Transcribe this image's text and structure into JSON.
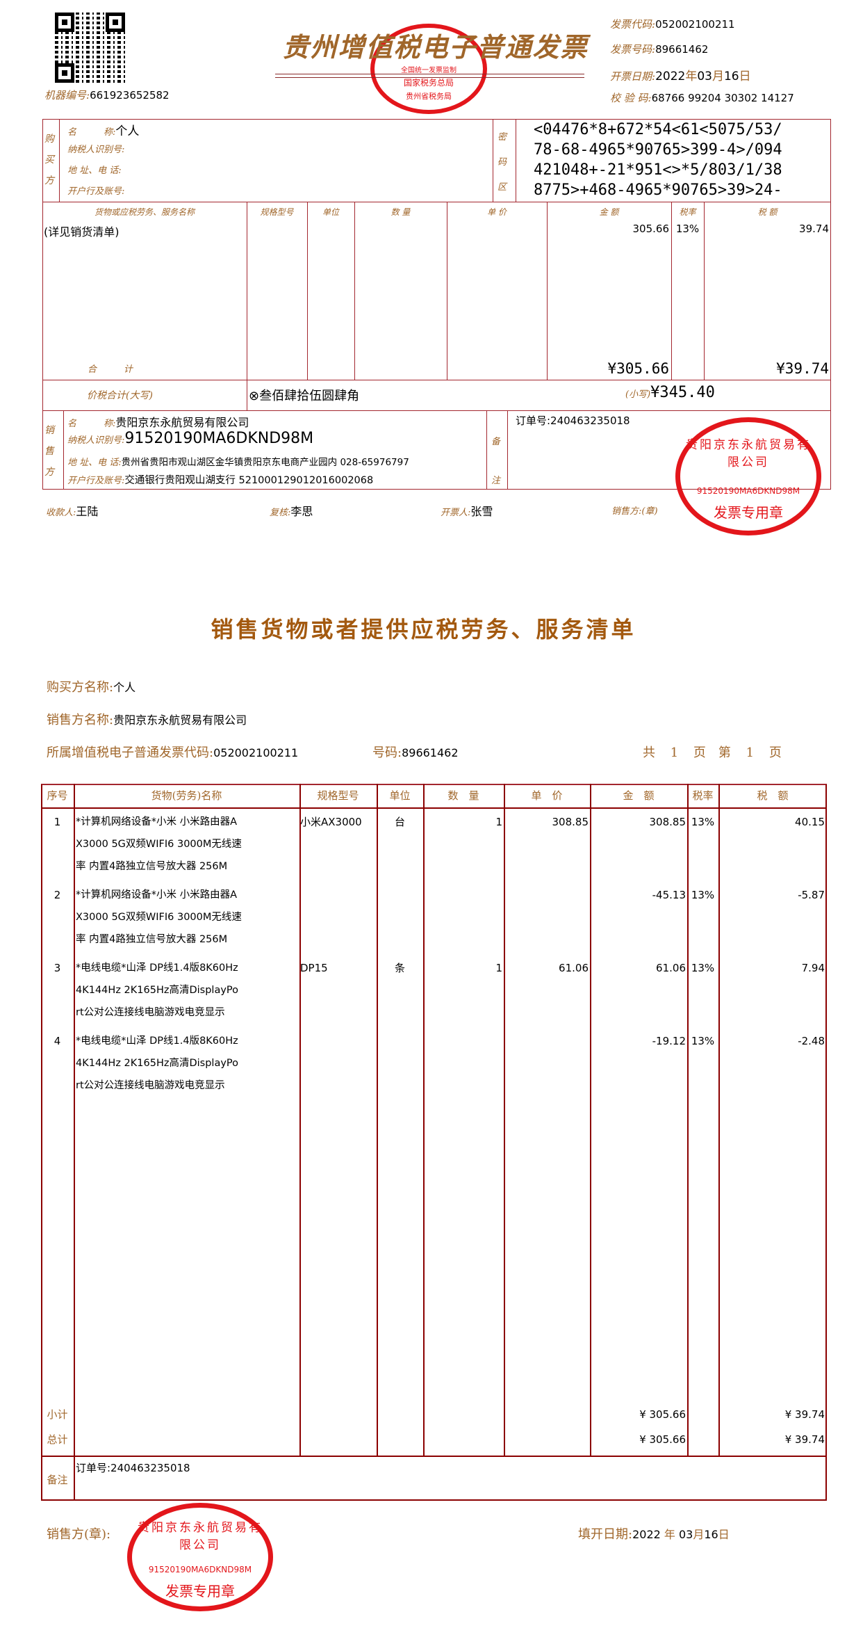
{
  "invoice": {
    "title": "贵州增值税电子普通发票",
    "machine_no_label": "机器编号:",
    "machine_no": "661923652582",
    "code_label": "发票代码:",
    "code": "052002100211",
    "number_label": "发票号码:",
    "number": "89661462",
    "date_label": "开票日期:",
    "date_year": "2022",
    "date_month": "03",
    "date_day": "16",
    "year_char": "年",
    "month_char": "月",
    "day_char": "日",
    "check_label": "校 验 码:",
    "check_code": "68766 99204 30302 14127",
    "tax_stamp": {
      "top": "全国统一发票监制",
      "middle": "国家税务总局",
      "bottom": "贵州省税务局"
    },
    "buyer": {
      "side_label": "购买方",
      "name_label": "名　　　称:",
      "name": "个人",
      "tax_id_label": "纳税人识别号:",
      "address_label": "地 址、电 话:",
      "bank_label": "开户行及账号:"
    },
    "cipher_label": "密码区",
    "cipher": [
      "<04476*8+672*54<61<5075/53/",
      "78-68-4965*90765>399-4>/094",
      "421048+-21*951<>*5/803/1/38",
      "8775>+468-4965*90765>39>24-"
    ],
    "goods_headers": [
      "货物或应税劳务、服务名称",
      "规格型号",
      "单位",
      "数 量",
      "单 价",
      "金 额",
      "税率",
      "税 额"
    ],
    "goods_row": {
      "name": "(详见销货清单)",
      "amount": "305.66",
      "rate": "13%",
      "tax": "39.74"
    },
    "total_label": "合　　　计",
    "total_amount": "¥305.66",
    "total_tax": "¥39.74",
    "grand_label": "价税合计(大写)",
    "grand_words": "叁佰肆拾伍圆肆角",
    "grand_small_label": "(小写)",
    "grand_small": "¥345.40",
    "seller": {
      "side_label": "销售方",
      "name_label": "名　　　称:",
      "name": "贵阳京东永航贸易有限公司",
      "tax_id_label": "纳税人识别号:",
      "tax_id": "91520190MA6DKND98M",
      "address_label": "地 址、电 话:",
      "address": "贵州省贵阳市观山湖区金华镇贵阳京东电商产业园内 028-65976797",
      "bank_label": "开户行及账号:",
      "bank": "交通银行贵阳观山湖支行 521000129012016002068"
    },
    "remark_label": "备注",
    "remark": "订单号:240463235018",
    "payee_label": "收款人:",
    "payee": "王陆",
    "reviewer_label": "复核:",
    "reviewer": "李思",
    "drawer_label": "开票人:",
    "drawer": "张雪",
    "seller_seal_label": "销售方:(章)",
    "seal": {
      "company": "贵阳京东永航贸易有限公司",
      "tax_id": "91520190MA6DKND98M",
      "text": "发票专用章"
    }
  },
  "list": {
    "title": "销售货物或者提供应税劳务、服务清单",
    "buyer_label": "购买方名称:",
    "buyer": "个人",
    "seller_label": "销售方名称:",
    "seller": "贵阳京东永航贸易有限公司",
    "code_label": "所属增值税电子普通发票代码:",
    "code": "052002100211",
    "number_label": "号码:",
    "number": "89661462",
    "pages": {
      "total_label": "共",
      "total": "1",
      "page_char": "页",
      "current_label": "第",
      "current": "1",
      "page_char2": "页"
    },
    "headers": [
      "序号",
      "货物(劳务)名称",
      "规格型号",
      "单位",
      "数　量",
      "单　价",
      "金　额",
      "税率",
      "税　额"
    ],
    "rows": [
      {
        "no": "1",
        "name": [
          "*计算机网络设备*小米 小米路由器A",
          "X3000 5G双频WIFI6 3000M无线速",
          "率 内置4路独立信号放大器 256M"
        ],
        "spec": "小米AX3000",
        "unit": "台",
        "qty": "1",
        "price": "308.85",
        "amount": "308.85",
        "rate": "13%",
        "tax": "40.15"
      },
      {
        "no": "2",
        "name": [
          "*计算机网络设备*小米 小米路由器A",
          "X3000 5G双频WIFI6 3000M无线速",
          "率 内置4路独立信号放大器 256M"
        ],
        "spec": "",
        "unit": "",
        "qty": "",
        "price": "",
        "amount": "-45.13",
        "rate": "13%",
        "tax": "-5.87"
      },
      {
        "no": "3",
        "name": [
          "*电线电缆*山泽 DP线1.4版8K60Hz",
          " 4K144Hz 2K165Hz高清DisplayPo",
          "rt公对公连接线电脑游戏电竞显示"
        ],
        "spec": "DP15",
        "unit": "条",
        "qty": "1",
        "price": "61.06",
        "amount": "61.06",
        "rate": "13%",
        "tax": "7.94"
      },
      {
        "no": "4",
        "name": [
          "*电线电缆*山泽 DP线1.4版8K60Hz",
          " 4K144Hz 2K165Hz高清DisplayPo",
          "rt公对公连接线电脑游戏电竞显示"
        ],
        "spec": "",
        "unit": "",
        "qty": "",
        "price": "",
        "amount": "-19.12",
        "rate": "13%",
        "tax": "-2.48"
      }
    ],
    "subtotal_label": "小计",
    "subtotal_amount": "¥ 305.66",
    "subtotal_tax": "¥ 39.74",
    "total_label": "总计",
    "total_amount": "¥ 305.66",
    "total_tax": "¥ 39.74",
    "remark_label": "备注",
    "remark": "订单号:240463235018",
    "seller_seal_label": "销售方(章):",
    "date_label": "填开日期:",
    "date_year": "2022",
    "year_char": "年",
    "date_month": "03",
    "month_char": "月",
    "date_day": "16",
    "day_char": "日"
  },
  "colors": {
    "label": "#a0662a",
    "line": "#a3262e",
    "table_line": "#8b0000",
    "stamp": "#e3161b"
  }
}
